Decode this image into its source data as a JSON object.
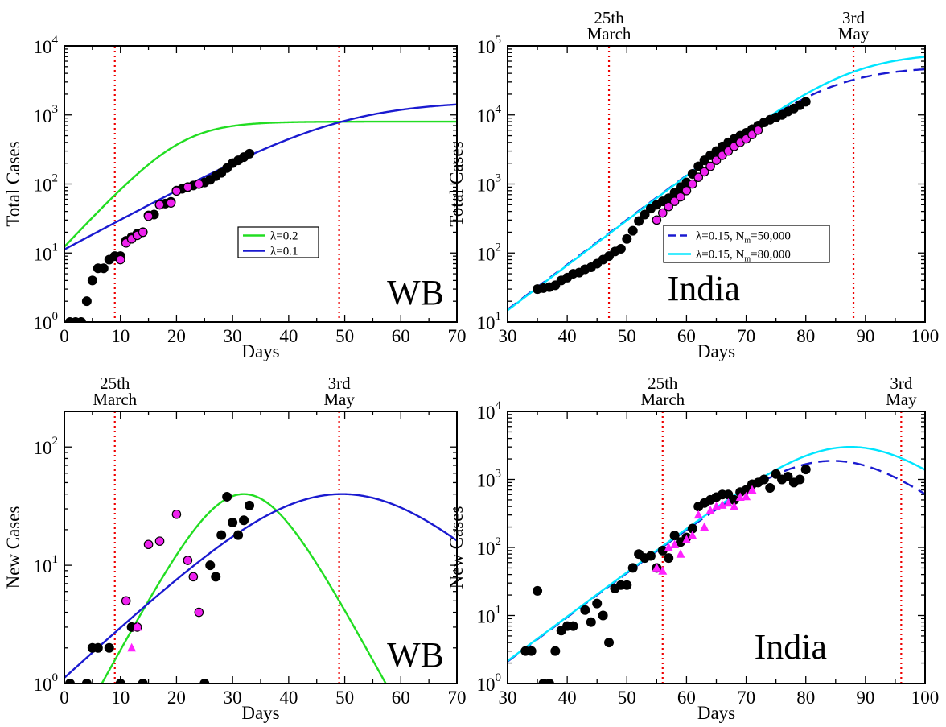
{
  "chart_data": [
    {
      "type": "line",
      "id": "p1",
      "region_label": "WB",
      "xlabel": "Days",
      "ylabel": "Total Cases",
      "xlim": [
        0,
        70
      ],
      "ylim": [
        1,
        10000
      ],
      "y_scale": "log",
      "x_ticks": [
        0,
        10,
        20,
        30,
        40,
        50,
        60,
        70
      ],
      "vlines": [
        9,
        49
      ],
      "vline_labels": [],
      "legend": {
        "placement": "center",
        "items": [
          {
            "label": "λ=0.2",
            "color": "#22dd22",
            "dash": "solid"
          },
          {
            "label": "λ=0.1",
            "color": "#1a1ad0",
            "dash": "solid"
          }
        ]
      },
      "curves": [
        {
          "name": "λ=0.2",
          "color": "#22dd22",
          "dash": "solid",
          "kind": "logistic_cum",
          "params": {
            "K": 800,
            "r": 0.2,
            "t0": 20.8
          }
        },
        {
          "name": "λ=0.1",
          "color": "#1a1ad0",
          "dash": "solid",
          "kind": "logistic_cum",
          "params": {
            "K": 1600,
            "r": 0.1,
            "t0": 49.5
          }
        }
      ],
      "points_black": [
        [
          1,
          1
        ],
        [
          2,
          1
        ],
        [
          3,
          1
        ],
        [
          4,
          2
        ],
        [
          5,
          4
        ],
        [
          6,
          6
        ],
        [
          7,
          6
        ],
        [
          8,
          8
        ],
        [
          9,
          9
        ],
        [
          10,
          9
        ],
        [
          11,
          15
        ],
        [
          12,
          17
        ],
        [
          13,
          19
        ],
        [
          14,
          20
        ],
        [
          15,
          35
        ],
        [
          16,
          36
        ],
        [
          17,
          50
        ],
        [
          18,
          52
        ],
        [
          19,
          55
        ],
        [
          20,
          80
        ],
        [
          21,
          85
        ],
        [
          22,
          90
        ],
        [
          23,
          95
        ],
        [
          24,
          100
        ],
        [
          25,
          105
        ],
        [
          26,
          115
        ],
        [
          27,
          130
        ],
        [
          28,
          145
        ],
        [
          29,
          170
        ],
        [
          30,
          200
        ],
        [
          31,
          220
        ],
        [
          32,
          245
        ],
        [
          33,
          275
        ]
      ],
      "points_magenta": [
        [
          10,
          8
        ],
        [
          11,
          14
        ],
        [
          12,
          16
        ],
        [
          13,
          18
        ],
        [
          14,
          20
        ],
        [
          15,
          34
        ],
        [
          17,
          50
        ],
        [
          19,
          53
        ],
        [
          20,
          79
        ],
        [
          22,
          90
        ],
        [
          24,
          100
        ]
      ]
    },
    {
      "type": "line",
      "id": "p2",
      "region_label": "India",
      "xlabel": "Days",
      "ylabel": "Total Cases",
      "xlim": [
        30,
        100
      ],
      "ylim": [
        10,
        100000
      ],
      "y_scale": "log",
      "x_ticks": [
        30,
        40,
        50,
        60,
        70,
        80,
        90,
        100
      ],
      "vlines": [
        47,
        88
      ],
      "vline_labels": [
        {
          "line1": "25th",
          "line2": "March"
        },
        {
          "line1": "3rd",
          "line2": "May"
        }
      ],
      "legend": {
        "placement": "center",
        "items": [
          {
            "label": "λ=0.15, N",
            "sub": "m",
            "after": "=50,000",
            "color": "#1a1ad0",
            "dash": "dashed"
          },
          {
            "label": "λ=0.15, N",
            "sub": "m",
            "after": "=80,000",
            "color": "#00e5ff",
            "dash": "solid"
          }
        ]
      },
      "curves": [
        {
          "name": "λ=0.15, Nm=50,000",
          "color": "#1a1ad0",
          "dash": "dashed",
          "kind": "logistic_cum",
          "params": {
            "K": 50000,
            "r": 0.15,
            "t0": 84
          }
        },
        {
          "name": "λ=0.15, Nm=80,000",
          "color": "#00e5ff",
          "dash": "solid",
          "kind": "logistic_cum",
          "params": {
            "K": 80000,
            "r": 0.15,
            "t0": 87.3
          }
        }
      ],
      "points_black": [
        [
          35,
          30
        ],
        [
          36,
          31
        ],
        [
          37,
          32
        ],
        [
          38,
          34
        ],
        [
          39,
          40
        ],
        [
          40,
          44
        ],
        [
          41,
          50
        ],
        [
          42,
          52
        ],
        [
          43,
          58
        ],
        [
          44,
          62
        ],
        [
          45,
          70
        ],
        [
          46,
          80
        ],
        [
          47,
          90
        ],
        [
          48,
          105
        ],
        [
          49,
          115
        ],
        [
          50,
          160
        ],
        [
          51,
          210
        ],
        [
          52,
          290
        ],
        [
          53,
          360
        ],
        [
          54,
          440
        ],
        [
          55,
          500
        ],
        [
          56,
          560
        ],
        [
          57,
          620
        ],
        [
          58,
          750
        ],
        [
          59,
          900
        ],
        [
          60,
          1050
        ],
        [
          61,
          1400
        ],
        [
          62,
          1800
        ],
        [
          63,
          2200
        ],
        [
          64,
          2600
        ],
        [
          65,
          3000
        ],
        [
          66,
          3500
        ],
        [
          67,
          4000
        ],
        [
          68,
          4500
        ],
        [
          69,
          5000
        ],
        [
          70,
          5500
        ],
        [
          71,
          6200
        ],
        [
          72,
          7000
        ],
        [
          73,
          7800
        ],
        [
          74,
          8500
        ],
        [
          75,
          9200
        ],
        [
          76,
          10000
        ],
        [
          77,
          11200
        ],
        [
          78,
          12400
        ],
        [
          79,
          13800
        ],
        [
          80,
          15500
        ]
      ],
      "points_magenta": [
        [
          55,
          300
        ],
        [
          56,
          380
        ],
        [
          57,
          470
        ],
        [
          58,
          560
        ],
        [
          59,
          650
        ],
        [
          60,
          800
        ],
        [
          61,
          1000
        ],
        [
          62,
          1250
        ],
        [
          63,
          1500
        ],
        [
          64,
          1800
        ],
        [
          65,
          2200
        ],
        [
          66,
          2600
        ],
        [
          67,
          3000
        ],
        [
          68,
          3500
        ],
        [
          69,
          4000
        ],
        [
          70,
          4500
        ],
        [
          71,
          5200
        ],
        [
          72,
          6000
        ]
      ]
    },
    {
      "type": "line",
      "id": "p3",
      "region_label": "WB",
      "xlabel": "Days",
      "ylabel": "New Cases",
      "xlim": [
        0,
        70
      ],
      "ylim": [
        1,
        200
      ],
      "y_scale": "log",
      "x_ticks": [
        0,
        10,
        20,
        30,
        40,
        50,
        60,
        70
      ],
      "vlines": [
        9,
        49
      ],
      "vline_labels": [
        {
          "line1": "25th",
          "line2": "March"
        },
        {
          "line1": "3rd",
          "line2": "May"
        }
      ],
      "legend": null,
      "curves": [
        {
          "name": "green",
          "color": "#22dd22",
          "dash": "solid",
          "kind": "logistic_rate",
          "params": {
            "K": 800,
            "r": 0.2,
            "t0": 32
          }
        },
        {
          "name": "blue",
          "color": "#1a1ad0",
          "dash": "solid",
          "kind": "logistic_rate",
          "params": {
            "K": 1600,
            "r": 0.1,
            "t0": 49.5
          }
        }
      ],
      "points_black": [
        [
          1,
          1
        ],
        [
          4,
          1
        ],
        [
          5,
          2
        ],
        [
          6,
          2
        ],
        [
          8,
          2
        ],
        [
          10,
          1
        ],
        [
          12,
          3
        ],
        [
          14,
          1
        ],
        [
          25,
          1
        ],
        [
          26,
          10
        ],
        [
          27,
          8
        ],
        [
          28,
          18
        ],
        [
          29,
          38
        ],
        [
          30,
          23
        ],
        [
          31,
          18
        ],
        [
          32,
          24
        ],
        [
          33,
          32
        ]
      ],
      "points_magenta": [
        [
          11,
          5
        ],
        [
          13,
          3
        ],
        [
          15,
          15
        ],
        [
          17,
          16
        ],
        [
          20,
          27
        ],
        [
          22,
          11
        ],
        [
          23,
          8
        ],
        [
          24,
          4
        ]
      ],
      "triangles_magenta": [
        [
          12,
          2
        ],
        [
          13,
          3
        ]
      ]
    },
    {
      "type": "line",
      "id": "p4",
      "region_label": "India",
      "xlabel": "Days",
      "ylabel": "New Cases",
      "xlim": [
        30,
        100
      ],
      "ylim": [
        1,
        10000
      ],
      "y_scale": "log",
      "x_ticks": [
        30,
        40,
        50,
        60,
        70,
        80,
        90,
        100
      ],
      "vlines": [
        56,
        96
      ],
      "vline_labels": [
        {
          "line1": "25th",
          "line2": "March"
        },
        {
          "line1": "3rd",
          "line2": "May"
        }
      ],
      "legend": null,
      "curves": [
        {
          "name": "dashed blue",
          "color": "#1a1ad0",
          "dash": "dashed",
          "kind": "logistic_rate",
          "params": {
            "K": 50000,
            "r": 0.15,
            "t0": 84.5
          }
        },
        {
          "name": "cyan",
          "color": "#00e5ff",
          "dash": "solid",
          "kind": "logistic_rate",
          "params": {
            "K": 80000,
            "r": 0.15,
            "t0": 87.5
          }
        }
      ],
      "points_black": [
        [
          33,
          3
        ],
        [
          34,
          3
        ],
        [
          35,
          23
        ],
        [
          36,
          1
        ],
        [
          37,
          1
        ],
        [
          38,
          3
        ],
        [
          39,
          6
        ],
        [
          40,
          7
        ],
        [
          41,
          7
        ],
        [
          43,
          12
        ],
        [
          44,
          8
        ],
        [
          45,
          15
        ],
        [
          46,
          10
        ],
        [
          47,
          4
        ],
        [
          48,
          25
        ],
        [
          49,
          28
        ],
        [
          50,
          28
        ],
        [
          51,
          50
        ],
        [
          52,
          80
        ],
        [
          53,
          70
        ],
        [
          54,
          75
        ],
        [
          55,
          50
        ],
        [
          56,
          90
        ],
        [
          57,
          70
        ],
        [
          58,
          150
        ],
        [
          59,
          120
        ],
        [
          60,
          140
        ],
        [
          61,
          190
        ],
        [
          62,
          400
        ],
        [
          63,
          450
        ],
        [
          64,
          500
        ],
        [
          65,
          550
        ],
        [
          66,
          600
        ],
        [
          67,
          600
        ],
        [
          68,
          500
        ],
        [
          69,
          650
        ],
        [
          70,
          700
        ],
        [
          71,
          850
        ],
        [
          72,
          900
        ],
        [
          73,
          1000
        ],
        [
          74,
          750
        ],
        [
          75,
          1200
        ],
        [
          76,
          1000
        ],
        [
          77,
          1100
        ],
        [
          78,
          900
        ],
        [
          79,
          1000
        ],
        [
          80,
          1400
        ]
      ],
      "points_magenta": [],
      "triangles_magenta": [
        [
          55,
          50
        ],
        [
          56,
          45
        ],
        [
          57,
          100
        ],
        [
          58,
          110
        ],
        [
          59,
          80
        ],
        [
          60,
          130
        ],
        [
          61,
          150
        ],
        [
          62,
          300
        ],
        [
          63,
          200
        ],
        [
          64,
          350
        ],
        [
          65,
          400
        ],
        [
          66,
          420
        ],
        [
          67,
          450
        ],
        [
          68,
          400
        ],
        [
          69,
          550
        ],
        [
          70,
          560
        ],
        [
          71,
          700
        ]
      ]
    }
  ]
}
